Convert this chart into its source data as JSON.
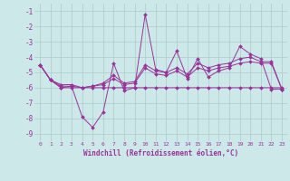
{
  "xlabel": "Windchill (Refroidissement éolien,°C)",
  "bg_color": "#cce8e8",
  "grid_color": "#aacccc",
  "line_color": "#993399",
  "xlim": [
    -0.5,
    23.5
  ],
  "ylim": [
    -9.5,
    -0.5
  ],
  "yticks": [
    -9,
    -8,
    -7,
    -6,
    -5,
    -4,
    -3,
    -2,
    -1
  ],
  "xticks": [
    0,
    1,
    2,
    3,
    4,
    5,
    6,
    7,
    8,
    9,
    10,
    11,
    12,
    13,
    14,
    15,
    16,
    17,
    18,
    19,
    20,
    21,
    22,
    23
  ],
  "series": {
    "line1_x": [
      0,
      1,
      2,
      3,
      4,
      5,
      6,
      7,
      8,
      9,
      10,
      11,
      12,
      13,
      14,
      15,
      16,
      17,
      18,
      19,
      20,
      21,
      22,
      23
    ],
    "line1_y": [
      -4.5,
      -5.5,
      -6.0,
      -5.9,
      -7.9,
      -8.6,
      -7.6,
      -4.4,
      -6.2,
      -6.0,
      -1.2,
      -4.8,
      -5.0,
      -3.6,
      -5.4,
      -4.1,
      -5.3,
      -4.9,
      -4.7,
      -3.3,
      -3.8,
      -4.1,
      -6.1,
      -6.1
    ],
    "line2_x": [
      0,
      1,
      2,
      3,
      4,
      5,
      6,
      7,
      8,
      9,
      10,
      11,
      12,
      13,
      14,
      15,
      16,
      17,
      18,
      19,
      20,
      21,
      22,
      23
    ],
    "line2_y": [
      -4.5,
      -5.5,
      -6.0,
      -6.0,
      -6.0,
      -6.0,
      -6.0,
      -6.0,
      -6.0,
      -6.0,
      -6.0,
      -6.0,
      -6.0,
      -6.0,
      -6.0,
      -6.0,
      -6.0,
      -6.0,
      -6.0,
      -6.0,
      -6.0,
      -6.0,
      -6.0,
      -6.0
    ],
    "line3_x": [
      0,
      1,
      2,
      3,
      4,
      5,
      6,
      7,
      8,
      9,
      10,
      11,
      12,
      13,
      14,
      15,
      16,
      17,
      18,
      19,
      20,
      21,
      22,
      23
    ],
    "line3_y": [
      -4.5,
      -5.5,
      -5.9,
      -5.9,
      -6.0,
      -5.9,
      -5.8,
      -5.4,
      -5.8,
      -5.7,
      -4.7,
      -5.1,
      -5.2,
      -4.9,
      -5.3,
      -4.7,
      -4.9,
      -4.7,
      -4.6,
      -4.4,
      -4.3,
      -4.4,
      -4.4,
      -6.1
    ],
    "line4_x": [
      0,
      1,
      2,
      3,
      4,
      5,
      6,
      7,
      8,
      9,
      10,
      11,
      12,
      13,
      14,
      15,
      16,
      17,
      18,
      19,
      20,
      21,
      22,
      23
    ],
    "line4_y": [
      -4.5,
      -5.5,
      -5.8,
      -5.8,
      -6.0,
      -5.9,
      -5.7,
      -5.2,
      -5.7,
      -5.6,
      -4.5,
      -4.9,
      -5.0,
      -4.7,
      -5.1,
      -4.4,
      -4.7,
      -4.5,
      -4.4,
      -4.1,
      -4.0,
      -4.3,
      -4.3,
      -6.1
    ]
  }
}
